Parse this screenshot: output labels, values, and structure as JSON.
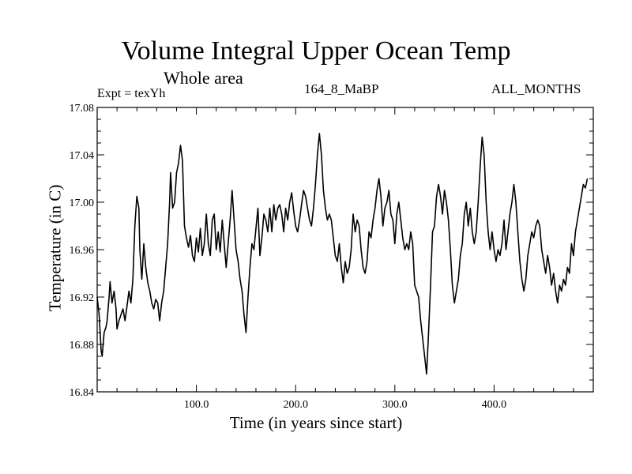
{
  "chart_data": {
    "type": "line",
    "title": "Volume Integral Upper Ocean Temp",
    "subtitle": "Whole area",
    "annotations": {
      "left": "Expt = texYh",
      "center": "164_8_MaBP",
      "right": "ALL_MONTHS"
    },
    "xlabel": "Time (in years since start)",
    "ylabel": "Temperature (in C)",
    "xlim": [
      0,
      500
    ],
    "ylim": [
      16.84,
      17.08
    ],
    "xticks": [
      100,
      200,
      300,
      400
    ],
    "xtick_labels": [
      "100.0",
      "200.0",
      "300.0",
      "400.0"
    ],
    "yticks": [
      16.84,
      16.88,
      16.92,
      16.96,
      17.0,
      17.04,
      17.08
    ],
    "ytick_labels": [
      "16.84",
      "16.88",
      "16.92",
      "16.96",
      "17.00",
      "17.04",
      "17.08"
    ],
    "grid": false,
    "series": [
      {
        "points": [
          [
            0,
            16.92
          ],
          [
            2,
            16.905
          ],
          [
            4,
            16.875
          ],
          [
            5,
            16.87
          ],
          [
            7,
            16.89
          ],
          [
            9,
            16.895
          ],
          [
            10,
            16.9
          ],
          [
            12,
            16.92
          ],
          [
            13,
            16.933
          ],
          [
            15,
            16.915
          ],
          [
            17,
            16.925
          ],
          [
            19,
            16.91
          ],
          [
            20,
            16.893
          ],
          [
            22,
            16.9
          ],
          [
            24,
            16.905
          ],
          [
            26,
            16.91
          ],
          [
            28,
            16.9
          ],
          [
            30,
            16.912
          ],
          [
            32,
            16.925
          ],
          [
            34,
            16.915
          ],
          [
            36,
            16.935
          ],
          [
            38,
            16.98
          ],
          [
            40,
            17.005
          ],
          [
            42,
            16.995
          ],
          [
            43,
            16.96
          ],
          [
            45,
            16.935
          ],
          [
            47,
            16.965
          ],
          [
            49,
            16.945
          ],
          [
            51,
            16.932
          ],
          [
            53,
            16.925
          ],
          [
            55,
            16.915
          ],
          [
            57,
            16.91
          ],
          [
            59,
            16.918
          ],
          [
            61,
            16.915
          ],
          [
            63,
            16.9
          ],
          [
            65,
            16.915
          ],
          [
            67,
            16.925
          ],
          [
            69,
            16.945
          ],
          [
            71,
            16.965
          ],
          [
            73,
            17.0
          ],
          [
            74,
            17.025
          ],
          [
            76,
            16.995
          ],
          [
            78,
            17.0
          ],
          [
            80,
            17.025
          ],
          [
            82,
            17.033
          ],
          [
            84,
            17.048
          ],
          [
            86,
            17.035
          ],
          [
            88,
            16.98
          ],
          [
            90,
            16.97
          ],
          [
            92,
            16.962
          ],
          [
            94,
            16.972
          ],
          [
            96,
            16.955
          ],
          [
            98,
            16.95
          ],
          [
            100,
            16.97
          ],
          [
            102,
            16.958
          ],
          [
            104,
            16.978
          ],
          [
            106,
            16.955
          ],
          [
            108,
            16.965
          ],
          [
            110,
            16.99
          ],
          [
            112,
            16.965
          ],
          [
            114,
            16.955
          ],
          [
            116,
            16.985
          ],
          [
            118,
            16.99
          ],
          [
            120,
            16.96
          ],
          [
            122,
            16.975
          ],
          [
            124,
            16.958
          ],
          [
            126,
            16.985
          ],
          [
            128,
            16.965
          ],
          [
            130,
            16.945
          ],
          [
            132,
            16.965
          ],
          [
            134,
            16.985
          ],
          [
            136,
            17.01
          ],
          [
            138,
            16.985
          ],
          [
            140,
            16.96
          ],
          [
            142,
            16.95
          ],
          [
            144,
            16.935
          ],
          [
            146,
            16.925
          ],
          [
            148,
            16.905
          ],
          [
            150,
            16.89
          ],
          [
            152,
            16.92
          ],
          [
            154,
            16.945
          ],
          [
            156,
            16.965
          ],
          [
            158,
            16.96
          ],
          [
            160,
            16.978
          ],
          [
            162,
            16.995
          ],
          [
            164,
            16.955
          ],
          [
            166,
            16.97
          ],
          [
            168,
            16.99
          ],
          [
            170,
            16.985
          ],
          [
            172,
            16.975
          ],
          [
            174,
            16.995
          ],
          [
            176,
            16.975
          ],
          [
            178,
            16.998
          ],
          [
            180,
            16.985
          ],
          [
            182,
            16.995
          ],
          [
            184,
            16.998
          ],
          [
            186,
            16.99
          ],
          [
            188,
            16.975
          ],
          [
            190,
            16.995
          ],
          [
            192,
            16.985
          ],
          [
            194,
            17.0
          ],
          [
            196,
            17.008
          ],
          [
            198,
            16.993
          ],
          [
            200,
            16.98
          ],
          [
            202,
            16.975
          ],
          [
            204,
            16.985
          ],
          [
            206,
            16.998
          ],
          [
            208,
            17.01
          ],
          [
            210,
            17.005
          ],
          [
            212,
            16.995
          ],
          [
            214,
            16.985
          ],
          [
            216,
            16.98
          ],
          [
            218,
            16.995
          ],
          [
            220,
            17.015
          ],
          [
            222,
            17.04
          ],
          [
            224,
            17.058
          ],
          [
            226,
            17.04
          ],
          [
            228,
            17.01
          ],
          [
            230,
            16.995
          ],
          [
            232,
            16.985
          ],
          [
            234,
            16.99
          ],
          [
            236,
            16.985
          ],
          [
            238,
            16.97
          ],
          [
            240,
            16.955
          ],
          [
            242,
            16.95
          ],
          [
            244,
            16.965
          ],
          [
            246,
            16.945
          ],
          [
            248,
            16.932
          ],
          [
            250,
            16.95
          ],
          [
            252,
            16.94
          ],
          [
            254,
            16.945
          ],
          [
            256,
            16.96
          ],
          [
            258,
            16.99
          ],
          [
            260,
            16.975
          ],
          [
            262,
            16.985
          ],
          [
            264,
            16.98
          ],
          [
            266,
            16.96
          ],
          [
            268,
            16.945
          ],
          [
            270,
            16.94
          ],
          [
            272,
            16.95
          ],
          [
            274,
            16.975
          ],
          [
            276,
            16.97
          ],
          [
            278,
            16.985
          ],
          [
            280,
            16.995
          ],
          [
            282,
            17.01
          ],
          [
            284,
            17.02
          ],
          [
            286,
            17.005
          ],
          [
            288,
            16.98
          ],
          [
            290,
            16.995
          ],
          [
            292,
            17.0
          ],
          [
            294,
            17.01
          ],
          [
            296,
            16.99
          ],
          [
            298,
            16.985
          ],
          [
            300,
            16.965
          ],
          [
            302,
            16.99
          ],
          [
            304,
            17.0
          ],
          [
            306,
            16.985
          ],
          [
            308,
            16.97
          ],
          [
            310,
            16.96
          ],
          [
            312,
            16.965
          ],
          [
            314,
            16.96
          ],
          [
            316,
            16.975
          ],
          [
            318,
            16.965
          ],
          [
            320,
            16.93
          ],
          [
            322,
            16.925
          ],
          [
            324,
            16.92
          ],
          [
            326,
            16.9
          ],
          [
            328,
            16.885
          ],
          [
            330,
            16.87
          ],
          [
            332,
            16.855
          ],
          [
            334,
            16.89
          ],
          [
            336,
            16.93
          ],
          [
            338,
            16.975
          ],
          [
            340,
            16.98
          ],
          [
            342,
            17.005
          ],
          [
            344,
            17.015
          ],
          [
            346,
            17.005
          ],
          [
            348,
            16.99
          ],
          [
            350,
            17.01
          ],
          [
            352,
            17.0
          ],
          [
            354,
            16.985
          ],
          [
            356,
            16.96
          ],
          [
            358,
            16.93
          ],
          [
            360,
            16.915
          ],
          [
            362,
            16.925
          ],
          [
            364,
            16.935
          ],
          [
            366,
            16.955
          ],
          [
            368,
            16.965
          ],
          [
            370,
            16.99
          ],
          [
            372,
            17.0
          ],
          [
            374,
            16.98
          ],
          [
            376,
            16.995
          ],
          [
            378,
            16.975
          ],
          [
            380,
            16.965
          ],
          [
            382,
            16.975
          ],
          [
            384,
            17.0
          ],
          [
            386,
            17.03
          ],
          [
            388,
            17.055
          ],
          [
            390,
            17.04
          ],
          [
            392,
            17.0
          ],
          [
            394,
            16.975
          ],
          [
            396,
            16.96
          ],
          [
            398,
            16.975
          ],
          [
            400,
            16.96
          ],
          [
            402,
            16.95
          ],
          [
            404,
            16.96
          ],
          [
            406,
            16.955
          ],
          [
            408,
            16.965
          ],
          [
            410,
            16.985
          ],
          [
            412,
            16.96
          ],
          [
            414,
            16.975
          ],
          [
            416,
            16.99
          ],
          [
            418,
            17.0
          ],
          [
            420,
            17.015
          ],
          [
            422,
            17.0
          ],
          [
            424,
            16.975
          ],
          [
            426,
            16.95
          ],
          [
            428,
            16.935
          ],
          [
            430,
            16.925
          ],
          [
            432,
            16.935
          ],
          [
            434,
            16.955
          ],
          [
            436,
            16.965
          ],
          [
            438,
            16.975
          ],
          [
            440,
            16.97
          ],
          [
            442,
            16.98
          ],
          [
            444,
            16.985
          ],
          [
            446,
            16.98
          ],
          [
            448,
            16.96
          ],
          [
            450,
            16.95
          ],
          [
            452,
            16.94
          ],
          [
            454,
            16.955
          ],
          [
            456,
            16.945
          ],
          [
            458,
            16.93
          ],
          [
            460,
            16.94
          ],
          [
            462,
            16.925
          ],
          [
            464,
            16.915
          ],
          [
            466,
            16.93
          ],
          [
            468,
            16.925
          ],
          [
            470,
            16.935
          ],
          [
            472,
            16.93
          ],
          [
            474,
            16.945
          ],
          [
            476,
            16.94
          ],
          [
            478,
            16.965
          ],
          [
            480,
            16.955
          ],
          [
            482,
            16.975
          ],
          [
            484,
            16.985
          ],
          [
            486,
            16.995
          ],
          [
            488,
            17.005
          ],
          [
            490,
            17.015
          ],
          [
            492,
            17.012
          ],
          [
            494,
            17.02
          ]
        ]
      }
    ]
  }
}
